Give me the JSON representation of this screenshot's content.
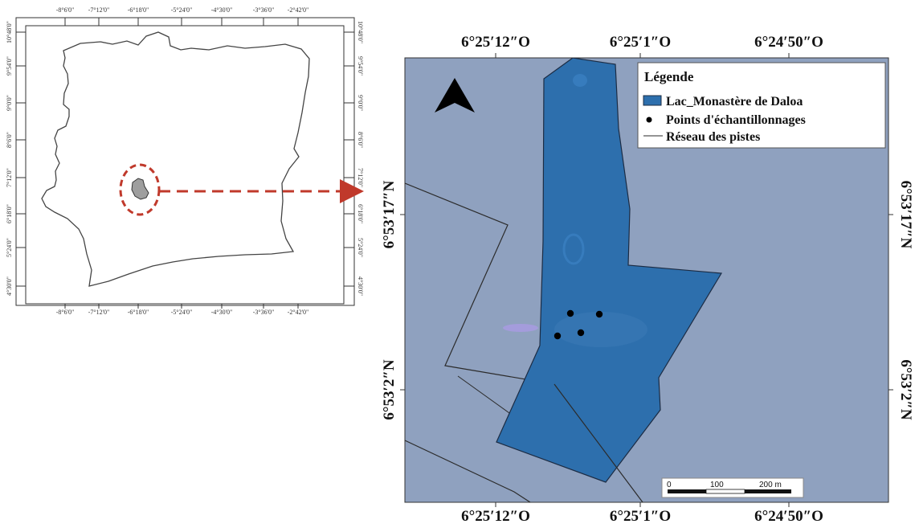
{
  "inset_map": {
    "top_labels": [
      "-8°6'0\"",
      "-7°12'0\"",
      "-6°18'0\"",
      "-5°24'0\"",
      "-4°30'0\"",
      "-3°36'0\"",
      "-2°42'0\""
    ],
    "bottom_labels": [
      "-8°6'0\"",
      "-7°12'0\"",
      "-6°18'0\"",
      "-5°24'0\"",
      "-4°30'0\"",
      "-3°36'0\"",
      "-2°42'0\""
    ],
    "left_labels": [
      "10°48'0\"",
      "9°54'0\"",
      "9°0'0\"",
      "8°6'0\"",
      "7°12'0\"",
      "6°18'0\"",
      "5°24'0\"",
      "4°30'0\""
    ],
    "right_labels": [
      "10°48'0\"",
      "9°54'0\"",
      "9°0'0\"",
      "8°6'0\"",
      "7°12'0\"",
      "6°18'0\"",
      "5°24'0\"",
      "4°30'0\""
    ],
    "highlight_color": "#c0392b"
  },
  "main_map": {
    "top_labels": [
      "6°25′12″O",
      "6°25′1″O",
      "6°24′50″O"
    ],
    "bottom_labels": [
      "6°25′12″O",
      "6°25′1″O",
      "6°24′50″O"
    ],
    "left_labels": [
      "6°53′17″N",
      "6°53′2″N"
    ],
    "right_labels": [
      "6°53′17″N",
      "6°53′2″N"
    ],
    "background_color": "#8fa1bf",
    "lake_color": "#2d6fad",
    "north_arrow": "north-arrow-icon"
  },
  "legend": {
    "title": "Légende",
    "items": [
      {
        "label": "Lac_Monastère de Daloa",
        "symbol": "lake-swatch-icon"
      },
      {
        "label": "Points d'échantillonnages",
        "symbol": "sample-point-icon"
      },
      {
        "label": "Réseau des pistes",
        "symbol": "track-line-icon"
      }
    ]
  },
  "scale_bar": {
    "labels": [
      "0",
      "100",
      "200 m"
    ]
  }
}
